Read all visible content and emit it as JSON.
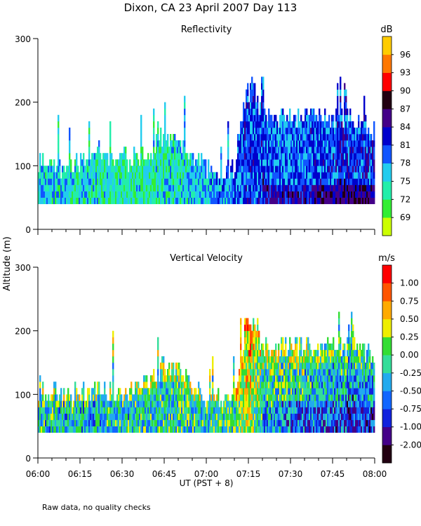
{
  "figure": {
    "title": "Dixon, CA 23 April 2007  Day 113",
    "ylabel": "Altitude (m)",
    "xlabel": "UT  (PST + 8)",
    "footnote": "Raw data, no quality checks"
  },
  "colors": {
    "reflectivity_scale": [
      "#ccff00",
      "#33ee33",
      "#22eeaa",
      "#22ccee",
      "#1155ff",
      "#0000cc",
      "#440088",
      "#220011",
      "#ff0000",
      "#ff7700",
      "#ffcc00"
    ],
    "velocity_scale": [
      "#220011",
      "#440088",
      "#1122dd",
      "#1166ff",
      "#22aaee",
      "#33dd99",
      "#33dd33",
      "#eeee00",
      "#ffaa00",
      "#ff5500",
      "#ff0000"
    ]
  },
  "chart_data": [
    {
      "type": "heatmap",
      "title": "Reflectivity",
      "unit": "dB",
      "xlabel": "UT  (PST + 8)",
      "ylabel": "Altitude (m)",
      "x_ticks": [
        "06:00",
        "06:15",
        "06:30",
        "06:45",
        "07:00",
        "07:15",
        "07:30",
        "07:45",
        "08:00"
      ],
      "x_range_minutes": [
        0,
        120
      ],
      "y_ticks": [
        "0",
        "100",
        "200",
        "300"
      ],
      "ylim": [
        0,
        300
      ],
      "colorbar_labels": [
        "96",
        "93",
        "90",
        "87",
        "84",
        "81",
        "78",
        "75",
        "72",
        "69"
      ],
      "colorbar_range": [
        67.5,
        99
      ],
      "echo_bottom_m": 40,
      "profile_minutes": [
        0,
        10,
        20,
        30,
        40,
        45,
        50,
        55,
        60,
        70,
        72,
        74,
        76,
        78,
        80,
        85,
        90,
        100,
        110,
        120
      ],
      "echo_top_m": [
        115,
        100,
        115,
        110,
        120,
        150,
        140,
        120,
        100,
        90,
        160,
        210,
        225,
        210,
        180,
        180,
        180,
        180,
        180,
        160
      ],
      "typical_dB": [
        77,
        76,
        76,
        75,
        75,
        76,
        76,
        77,
        78,
        80,
        81,
        82,
        81,
        81,
        81,
        80,
        80,
        81,
        82,
        82
      ],
      "grid": false
    },
    {
      "type": "heatmap",
      "title": "Vertical Velocity",
      "unit": "m/s",
      "xlabel": "UT  (PST + 8)",
      "ylabel": "Altitude (m)",
      "x_ticks": [
        "06:00",
        "06:15",
        "06:30",
        "06:45",
        "07:00",
        "07:15",
        "07:30",
        "07:45",
        "08:00"
      ],
      "x_range_minutes": [
        0,
        120
      ],
      "y_ticks": [
        "0",
        "100",
        "200",
        "300"
      ],
      "ylim": [
        0,
        300
      ],
      "colorbar_labels": [
        "1.00",
        "0.75",
        "0.50",
        "0.25",
        "0.00",
        "-0.25",
        "-0.50",
        "-0.75",
        "-1.00",
        "-2.00"
      ],
      "colorbar_range": [
        -2.25,
        1.25
      ],
      "echo_bottom_m": 40,
      "profile_minutes": [
        0,
        10,
        20,
        30,
        40,
        45,
        50,
        55,
        60,
        70,
        72,
        74,
        76,
        78,
        80,
        85,
        90,
        100,
        110,
        120
      ],
      "echo_top_m": [
        115,
        100,
        115,
        110,
        120,
        150,
        140,
        120,
        100,
        90,
        160,
        210,
        225,
        210,
        180,
        180,
        180,
        180,
        180,
        160
      ],
      "typical_ms": [
        -0.6,
        -0.7,
        -0.7,
        -0.6,
        -0.6,
        -0.5,
        -0.5,
        -0.5,
        -0.6,
        -0.4,
        -0.1,
        0.1,
        0.0,
        -0.3,
        -0.4,
        -0.5,
        -0.6,
        -0.7,
        -0.8,
        -0.9
      ],
      "grid": false
    }
  ]
}
